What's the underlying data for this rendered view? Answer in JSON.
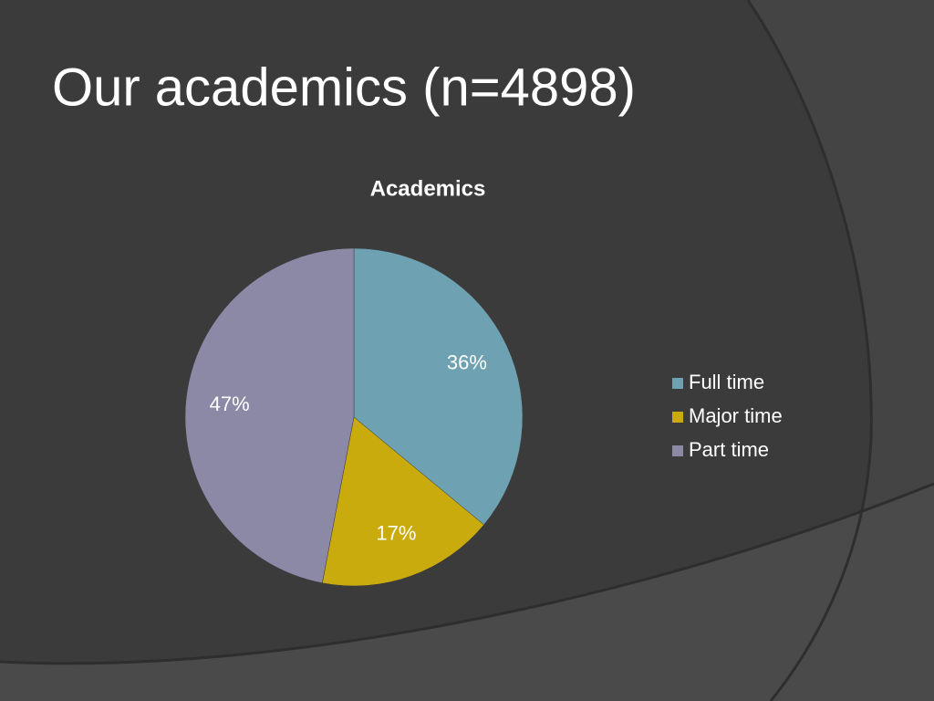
{
  "slide": {
    "title": "Our academics (n=4898)"
  },
  "chart_data": {
    "type": "pie",
    "title": "Academics",
    "categories": [
      "Full time",
      "Major time",
      "Part time"
    ],
    "values": [
      36,
      17,
      47
    ],
    "value_labels": [
      "36%",
      "17%",
      "47%"
    ],
    "colors": [
      "#6ea2b2",
      "#c9ab0e",
      "#8c89a7"
    ],
    "legend": "right"
  }
}
